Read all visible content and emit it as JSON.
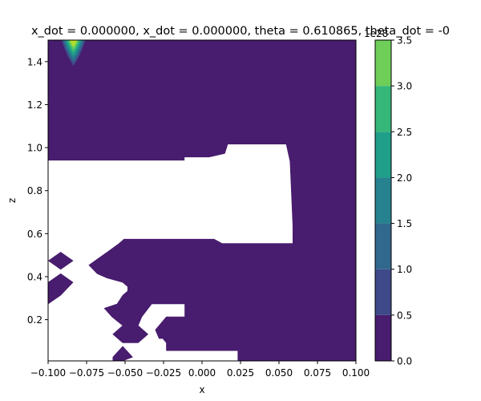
{
  "chart_data": {
    "type": "heatmap",
    "subtype": "filled-contour",
    "title": "x_dot = 0.000000, x_dot = 0.000000, theta = 0.610865, theta_dot = -0",
    "xlabel": "x",
    "ylabel": "z",
    "xlim": [
      -0.1,
      0.1
    ],
    "ylim": [
      0.0083,
      1.5
    ],
    "x_ticks": [
      -0.1,
      -0.075,
      -0.05,
      -0.025,
      0.0,
      0.025,
      0.05,
      0.075,
      0.1
    ],
    "x_tick_labels": [
      "−0.100",
      "−0.075",
      "−0.050",
      "−0.025",
      "0.000",
      "0.025",
      "0.050",
      "0.075",
      "0.100"
    ],
    "y_ticks": [
      0.2,
      0.4,
      0.6,
      0.8,
      1.0,
      1.2,
      1.4
    ],
    "y_tick_labels": [
      "0.2",
      "0.4",
      "0.6",
      "0.8",
      "1.0",
      "1.2",
      "1.4"
    ],
    "grid": false,
    "colorbar": {
      "offset_label": "1e28",
      "levels": [
        0.0,
        0.5,
        1.0,
        1.5,
        2.0,
        2.5,
        3.0,
        3.5
      ],
      "tick_labels": [
        "0.0",
        "0.5",
        "1.0",
        "1.5",
        "2.0",
        "2.5",
        "3.0",
        "3.5"
      ],
      "colors": [
        "#481c6e",
        "#453581",
        "#3d4d8a",
        "#34618d",
        "#2b748e",
        "#24878e",
        "#1f998a",
        "#25ac82",
        "#40bd72",
        "#67cc5c",
        "#98d83e",
        "#d0e11c"
      ],
      "band_colors": [
        "#481c6e",
        "#3e4989",
        "#31688e",
        "#26828e",
        "#1f9e89",
        "#35b779",
        "#6ece58",
        "#b5de2b"
      ]
    },
    "fill_color": "#481c6e",
    "undefined_color": "#ffffff",
    "peak": {
      "x": -0.0835,
      "z": 1.5,
      "value": 3.5
    },
    "filled_regions": [
      {
        "name": "upper-band",
        "points": [
          [
            -0.1,
            1.5
          ],
          [
            0.1,
            1.5
          ],
          [
            0.1,
            0.0083
          ],
          [
            0.0233,
            0.0083
          ],
          [
            0.0233,
            0.0561
          ],
          [
            0.009,
            0.0561
          ],
          [
            -0.0232,
            0.0561
          ],
          [
            -0.0232,
            0.0924
          ],
          [
            -0.0255,
            0.1125
          ],
          [
            -0.0279,
            0.1125
          ],
          [
            -0.0303,
            0.1526
          ],
          [
            -0.0232,
            0.2129
          ],
          [
            -0.0112,
            0.2129
          ],
          [
            -0.0112,
            0.2731
          ],
          [
            -0.0327,
            0.2731
          ],
          [
            -0.0391,
            0.2129
          ],
          [
            -0.0415,
            0.1727
          ],
          [
            -0.0515,
            0.1727
          ],
          [
            -0.0585,
            0.2129
          ],
          [
            -0.0635,
            0.2531
          ],
          [
            -0.0552,
            0.2731
          ],
          [
            -0.0515,
            0.3133
          ],
          [
            -0.0483,
            0.3334
          ],
          [
            -0.0483,
            0.3535
          ],
          [
            -0.0515,
            0.3735
          ],
          [
            -0.0616,
            0.3936
          ],
          [
            -0.0681,
            0.4136
          ],
          [
            -0.0735,
            0.4538
          ],
          [
            -0.0616,
            0.5141
          ],
          [
            -0.0539,
            0.5543
          ],
          [
            -0.0507,
            0.5743
          ],
          [
            0.0024,
            0.5743
          ],
          [
            0.0078,
            0.5743
          ],
          [
            0.0131,
            0.5542
          ],
          [
            0.0233,
            0.5542
          ],
          [
            0.0314,
            0.5542
          ],
          [
            0.059,
            0.5542
          ],
          [
            0.059,
            0.6346
          ],
          [
            0.0572,
            0.9362
          ],
          [
            0.0547,
            1.0165
          ],
          [
            0.0416,
            1.0165
          ],
          [
            0.0167,
            1.0165
          ],
          [
            0.0148,
            0.9725
          ],
          [
            0.0047,
            0.9564
          ],
          [
            0.0,
            0.9564
          ],
          [
            -0.0115,
            0.9564
          ],
          [
            -0.0115,
            0.9414
          ],
          [
            -0.1,
            0.9414
          ]
        ]
      }
    ],
    "islands": [
      {
        "name": "left-diamond-upper",
        "points": [
          [
            -0.0918,
            0.5141
          ],
          [
            -0.0838,
            0.4739
          ],
          [
            -0.0918,
            0.4337
          ],
          [
            -0.0998,
            0.4739
          ]
        ]
      },
      {
        "name": "left-diamond-lower",
        "points": [
          [
            -0.1,
            0.2731
          ],
          [
            -0.0918,
            0.3133
          ],
          [
            -0.0838,
            0.3735
          ],
          [
            -0.0918,
            0.4136
          ],
          [
            -0.1,
            0.3735
          ]
        ]
      },
      {
        "name": "bottom-diamond-1",
        "points": [
          [
            -0.0515,
            0.1727
          ],
          [
            -0.0415,
            0.1727
          ],
          [
            -0.0351,
            0.1325
          ],
          [
            -0.0415,
            0.0924
          ],
          [
            -0.0515,
            0.0924
          ],
          [
            -0.0579,
            0.1325
          ]
        ]
      },
      {
        "name": "bottom-diamond-2",
        "points": [
          [
            -0.0515,
            0.0763
          ],
          [
            -0.0451,
            0.0261
          ],
          [
            -0.0515,
            0.0083
          ],
          [
            -0.0579,
            0.0083
          ],
          [
            -0.0579,
            0.0261
          ]
        ]
      }
    ]
  }
}
